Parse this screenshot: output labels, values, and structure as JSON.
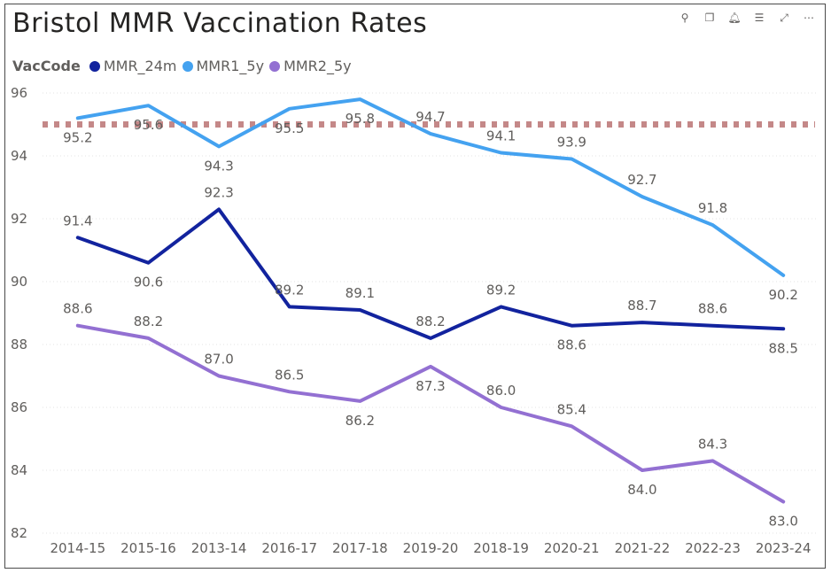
{
  "visual": {
    "title": "Bristol MMR Vaccination Rates",
    "toolbar": [
      {
        "name": "pin-icon",
        "glyph": "⚲"
      },
      {
        "name": "copy-icon",
        "glyph": "❐"
      },
      {
        "name": "alert-bell-icon",
        "glyph": "🔔︎"
      },
      {
        "name": "filter-icon",
        "glyph": "☰"
      },
      {
        "name": "focus-mode-icon",
        "glyph": "⤢"
      },
      {
        "name": "more-options-icon",
        "glyph": "⋯"
      }
    ]
  },
  "legend": {
    "title": "VacCode",
    "items": [
      {
        "label": "MMR_24m",
        "color": "#12239E"
      },
      {
        "label": "MMR1_5y",
        "color": "#44A2F0"
      },
      {
        "label": "MMR2_5y",
        "color": "#9370D2"
      }
    ]
  },
  "chart_data": {
    "type": "line",
    "title": "Bristol MMR Vaccination Rates",
    "xlabel": "",
    "ylabel": "",
    "categories": [
      "2014-15",
      "2015-16",
      "2013-14",
      "2016-17",
      "2017-18",
      "2019-20",
      "2018-19",
      "2020-21",
      "2021-22",
      "2022-23",
      "2023-24"
    ],
    "ylim": [
      82,
      96
    ],
    "yticks": [
      82,
      84,
      86,
      88,
      90,
      92,
      94,
      96
    ],
    "grid": true,
    "legend_position": "top-left",
    "reference_line": {
      "value": 95,
      "color": "#C48888",
      "style": "dotted"
    },
    "series": [
      {
        "name": "MMR_24m",
        "color": "#12239E",
        "values": [
          91.4,
          90.6,
          92.3,
          89.2,
          89.1,
          88.2,
          89.2,
          88.6,
          88.7,
          88.6,
          88.5
        ],
        "labels": [
          "91.4",
          "90.6",
          "92.3",
          "89.2",
          "89.1",
          "88.2",
          "89.2",
          "88.6",
          "88.7",
          "88.6",
          "88.5"
        ],
        "label_pos": [
          "above",
          "below",
          "above",
          "above",
          "above",
          "above",
          "above",
          "below",
          "above",
          "above",
          "below"
        ]
      },
      {
        "name": "MMR1_5y",
        "color": "#44A2F0",
        "values": [
          95.2,
          95.6,
          94.3,
          95.5,
          95.8,
          94.7,
          94.1,
          93.9,
          92.7,
          91.8,
          90.2
        ],
        "labels": [
          "95.2",
          "95.6",
          "94.3",
          "95.5",
          "95.8",
          "94.7",
          "94.1",
          "93.9",
          "92.7",
          "91.8",
          "90.2"
        ],
        "label_pos": [
          "below",
          "below",
          "below",
          "below",
          "below",
          "above",
          "above",
          "above",
          "above",
          "above",
          "below"
        ]
      },
      {
        "name": "MMR2_5y",
        "color": "#9370D2",
        "values": [
          88.6,
          88.2,
          87.0,
          86.5,
          86.2,
          87.3,
          86.0,
          85.4,
          84.0,
          84.3,
          83.0
        ],
        "labels": [
          "88.6",
          "88.2",
          "87.0",
          "86.5",
          "86.2",
          "87.3",
          "86.0",
          "85.4",
          "84.0",
          "84.3",
          "83.0"
        ],
        "label_pos": [
          "above",
          "above",
          "above",
          "above",
          "below",
          "below",
          "above",
          "above",
          "below",
          "above",
          "below"
        ]
      }
    ]
  }
}
